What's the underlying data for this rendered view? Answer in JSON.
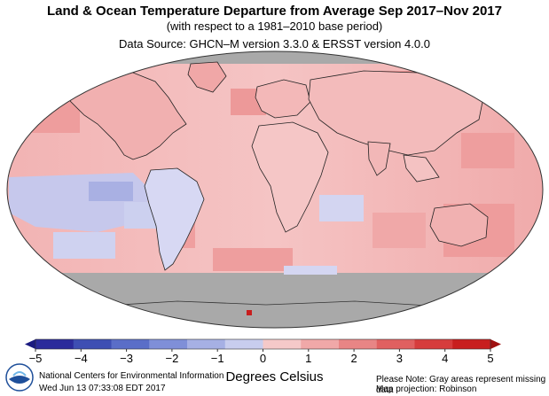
{
  "title": "Land & Ocean Temperature Departure from Average Sep 2017–Nov 2017",
  "subtitle": "(with respect to a 1981–2010 base period)",
  "data_source": "Data Source: GHCN–M version 3.3.0 & ERSST version 4.0.0",
  "colorbar": {
    "ticks": [
      "−5",
      "−4",
      "−3",
      "−2",
      "−1",
      "0",
      "1",
      "2",
      "3",
      "4",
      "5"
    ],
    "min": -5,
    "max": 5,
    "colors_cold": [
      "#2b2b9b",
      "#3e4fb3",
      "#5a6ec8",
      "#7f8fd8",
      "#a6b0e4",
      "#c8cdee"
    ],
    "colors_warm": [
      "#f5c9c9",
      "#f0a8a8",
      "#e88585",
      "#e06060",
      "#d63c3c",
      "#c81e1e"
    ]
  },
  "units_label": "Degrees Celsius",
  "footer": {
    "agency": "National Centers for Environmental Information",
    "timestamp": "Wed Jun 13 07:33:08 EDT 2017",
    "note": "Please Note: Gray areas represent missing data",
    "projection": "Map projection: Robinson"
  },
  "colors": {
    "missing": "#aaaaaa",
    "warm_dominant": "#f2b6b6",
    "cool_patch": "#c7c9ee"
  },
  "icons": {
    "logo": "noaa-logo"
  }
}
